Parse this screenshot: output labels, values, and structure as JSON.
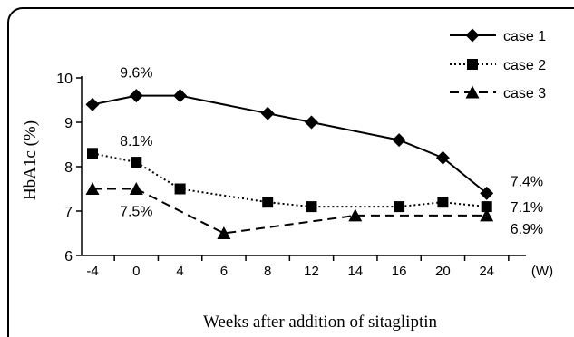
{
  "chart_data": {
    "type": "line",
    "xlabel": "Weeks after addition of sitagliptin",
    "ylabel": "HbA1c (%)",
    "x_unit": "(W)",
    "categories": [
      "-4",
      "0",
      "4",
      "6",
      "8",
      "12",
      "14",
      "16",
      "20",
      "24"
    ],
    "ylim": [
      6,
      10
    ],
    "yticks": [
      6,
      7,
      8,
      9,
      10
    ],
    "grid": false,
    "legend_position": "top-right",
    "series": [
      {
        "name": "case 1",
        "marker": "diamond",
        "line_style": "solid",
        "color": "#000000",
        "points": [
          {
            "x": "-4",
            "y": 9.4
          },
          {
            "x": "0",
            "y": 9.6
          },
          {
            "x": "4",
            "y": 9.6
          },
          {
            "x": "8",
            "y": 9.2
          },
          {
            "x": "12",
            "y": 9.0
          },
          {
            "x": "16",
            "y": 8.6
          },
          {
            "x": "20",
            "y": 8.2
          },
          {
            "x": "24",
            "y": 7.4
          }
        ]
      },
      {
        "name": "case 2",
        "marker": "square",
        "line_style": "dotted",
        "color": "#000000",
        "points": [
          {
            "x": "-4",
            "y": 8.3
          },
          {
            "x": "0",
            "y": 8.1
          },
          {
            "x": "4",
            "y": 7.5
          },
          {
            "x": "8",
            "y": 7.2
          },
          {
            "x": "12",
            "y": 7.1
          },
          {
            "x": "16",
            "y": 7.1
          },
          {
            "x": "20",
            "y": 7.2
          },
          {
            "x": "24",
            "y": 7.1
          }
        ]
      },
      {
        "name": "case 3",
        "marker": "triangle",
        "line_style": "dashed",
        "color": "#000000",
        "points": [
          {
            "x": "-4",
            "y": 7.5
          },
          {
            "x": "0",
            "y": 7.5
          },
          {
            "x": "6",
            "y": 6.5
          },
          {
            "x": "14",
            "y": 6.9
          },
          {
            "x": "24",
            "y": 6.9
          }
        ]
      }
    ],
    "annotations": [
      {
        "text": "9.6%",
        "series": "case 1",
        "x": "0"
      },
      {
        "text": "8.1%",
        "series": "case 2",
        "x": "0"
      },
      {
        "text": "7.5%",
        "series": "case 3",
        "x": "0"
      },
      {
        "text": "7.4%",
        "series": "case 1",
        "x": "24"
      },
      {
        "text": "7.1%",
        "series": "case 2",
        "x": "24"
      },
      {
        "text": "6.9%",
        "series": "case 3",
        "x": "24"
      }
    ]
  }
}
